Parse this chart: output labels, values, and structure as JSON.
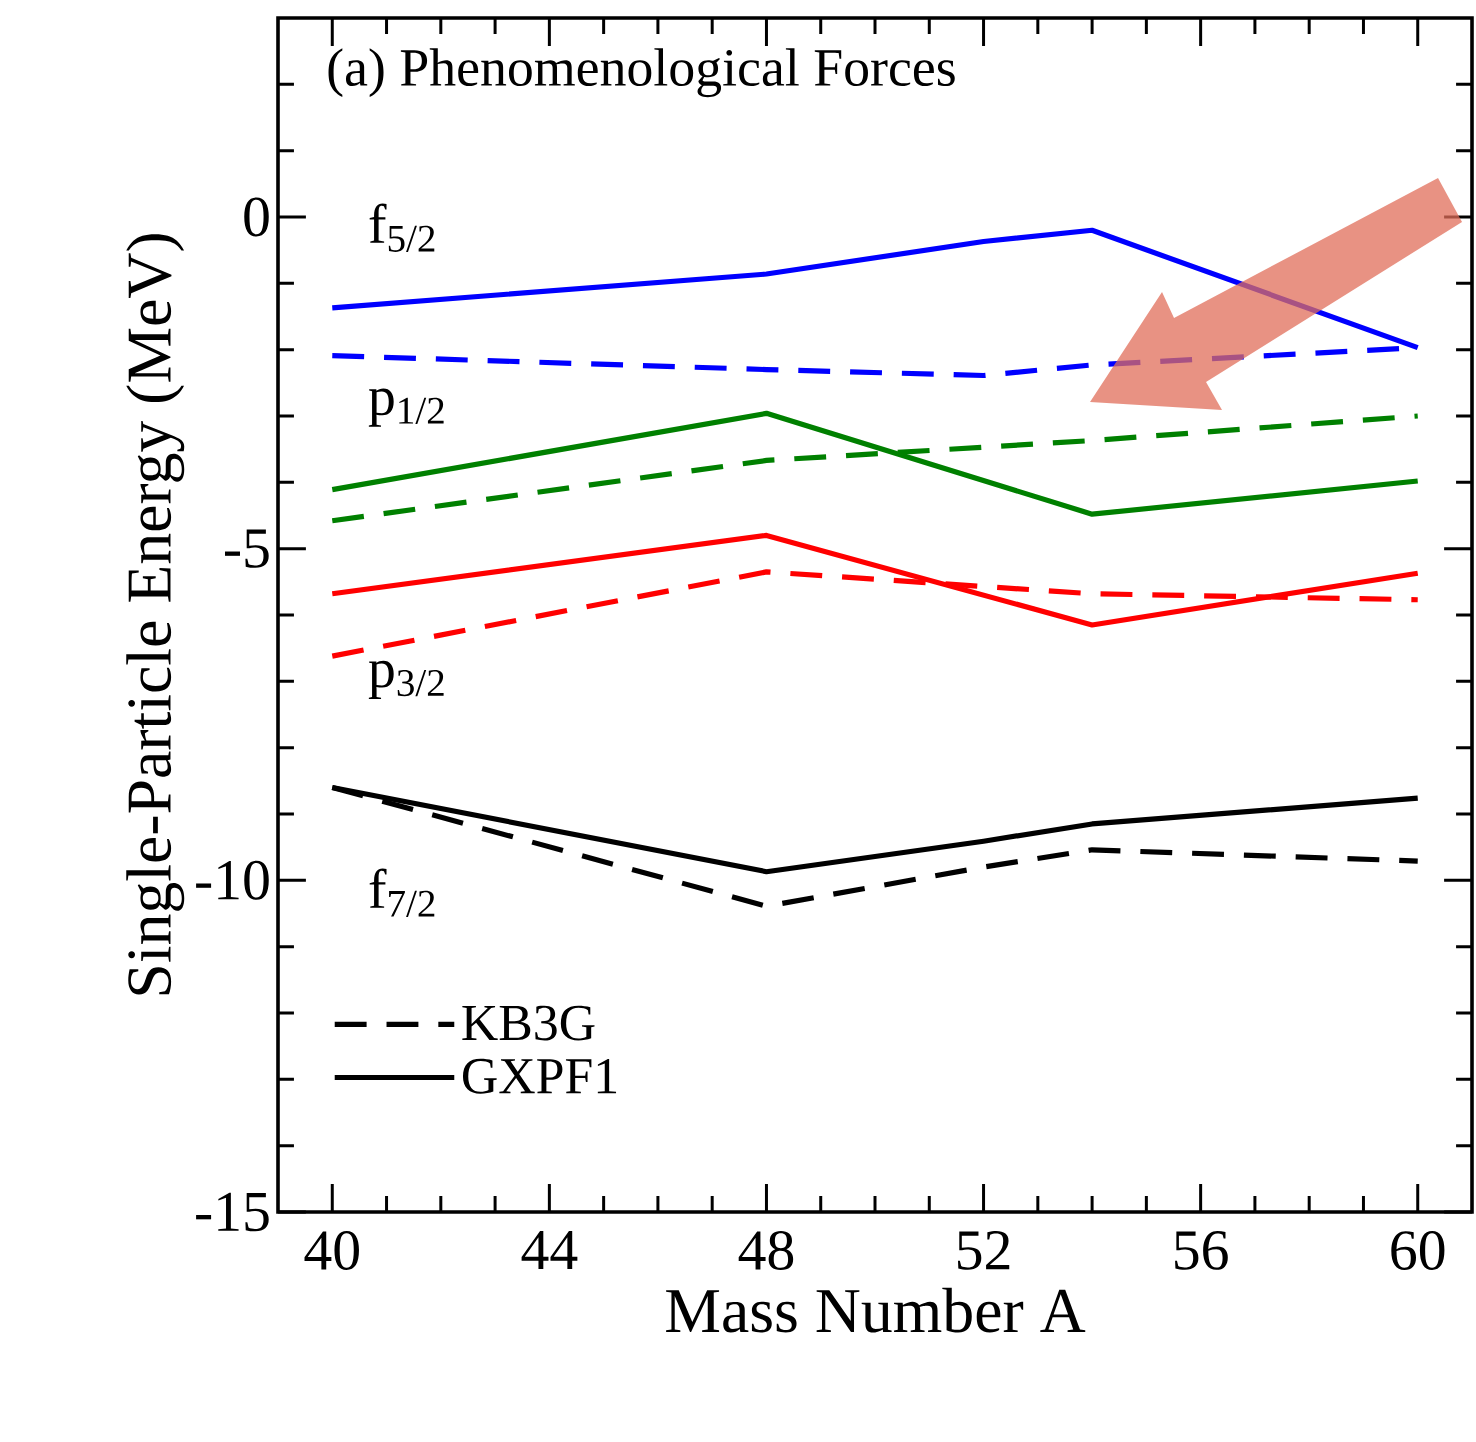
{
  "chart_data": {
    "type": "line",
    "xlabel": "Mass Number A",
    "ylabel": "Single-Particle Energy (MeV)",
    "xlim": [
      39,
      61
    ],
    "ylim": [
      -15,
      3
    ],
    "xticks": [
      40,
      {
        "value": 41,
        "label": null
      },
      {
        "value": 42,
        "label": null
      },
      {
        "value": 43,
        "label": null
      },
      44,
      {
        "value": 45,
        "label": null
      },
      {
        "value": 46,
        "label": null
      },
      {
        "value": 47,
        "label": null
      },
      48,
      {
        "value": 49,
        "label": null
      },
      {
        "value": 50,
        "label": null
      },
      {
        "value": 51,
        "label": null
      },
      52,
      {
        "value": 53,
        "label": null
      },
      {
        "value": 54,
        "label": null
      },
      {
        "value": 55,
        "label": null
      },
      56,
      {
        "value": 57,
        "label": null
      },
      {
        "value": 58,
        "label": null
      },
      {
        "value": 59,
        "label": null
      },
      60
    ],
    "yticks": [
      -15,
      {
        "value": -14,
        "label": null
      },
      {
        "value": -13,
        "label": null
      },
      {
        "value": -12,
        "label": null
      },
      {
        "value": -11,
        "label": null
      },
      -10,
      {
        "value": -9,
        "label": null
      },
      {
        "value": -8,
        "label": null
      },
      {
        "value": -7,
        "label": null
      },
      {
        "value": -6,
        "label": null
      },
      -5,
      {
        "value": -4,
        "label": null
      },
      {
        "value": -3,
        "label": null
      },
      {
        "value": -2,
        "label": null
      },
      {
        "value": -1,
        "label": null
      },
      0,
      {
        "value": 1,
        "label": null
      },
      {
        "value": 2,
        "label": null
      }
    ],
    "legend": "bottom left",
    "grid": false,
    "marker": "none",
    "series": [
      {
        "color": "#0000ff",
        "line_style": "solid",
        "x": [
          40,
          48,
          52,
          54,
          60
        ],
        "values": [
          -1.37,
          -0.86,
          -0.37,
          -0.2,
          -1.97
        ]
      },
      {
        "color": "#0000ff",
        "line_style": "dashed",
        "x": [
          40,
          48,
          52,
          54,
          60
        ],
        "values": [
          -2.09,
          -2.3,
          -2.39,
          -2.23,
          -1.97
        ]
      },
      {
        "color": "#008000",
        "line_style": "solid",
        "x": [
          40,
          48,
          54,
          60
        ],
        "values": [
          -4.11,
          -2.96,
          -4.48,
          -3.98
        ]
      },
      {
        "color": "#008000",
        "line_style": "dashed",
        "x": [
          40,
          48,
          54,
          60
        ],
        "values": [
          -4.58,
          -3.67,
          -3.37,
          -3.0
        ]
      },
      {
        "color": "#ff0000",
        "line_style": "solid",
        "x": [
          40,
          48,
          54,
          60
        ],
        "values": [
          -5.68,
          -4.8,
          -6.15,
          -5.37
        ]
      },
      {
        "color": "#ff0000",
        "line_style": "dashed",
        "x": [
          40,
          48,
          54,
          60
        ],
        "values": [
          -6.62,
          -5.35,
          -5.68,
          -5.77
        ]
      },
      {
        "name": "KB3G",
        "color": "#000000",
        "line_style": "dashed",
        "x": [
          40,
          48,
          52,
          54,
          60
        ],
        "values": [
          -8.6,
          -10.39,
          -9.8,
          -9.54,
          -9.71
        ]
      },
      {
        "name": "GXPF1",
        "color": "#000000",
        "line_style": "solid",
        "x": [
          40,
          48,
          52,
          54,
          60
        ],
        "values": [
          -8.6,
          -9.87,
          -9.41,
          -9.15,
          -8.76
        ]
      }
    ],
    "annotations": [
      "(a) Phenomenological Forces",
      "f$_{5/2}$",
      "p$_{1/2}$",
      "p$_{3/2}$",
      "f$_{7/2}$"
    ]
  }
}
